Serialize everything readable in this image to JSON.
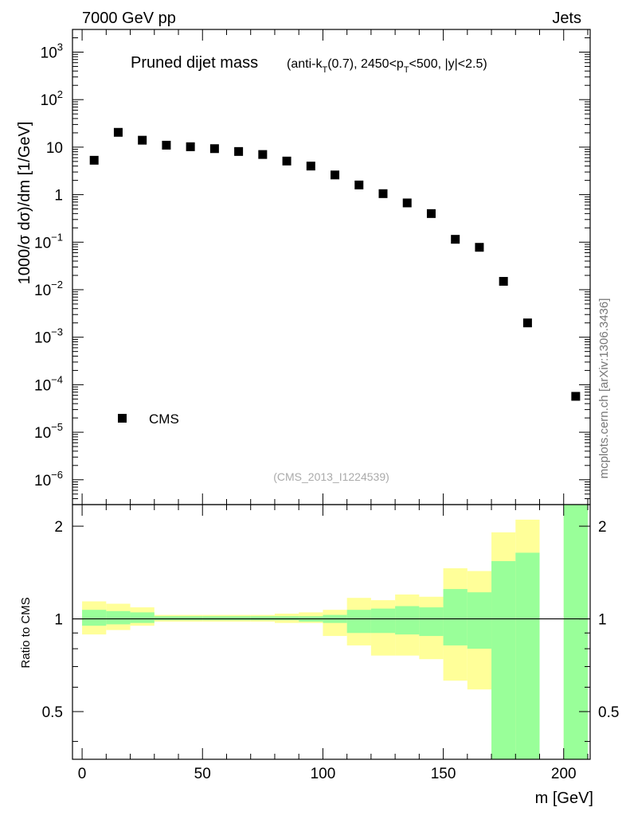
{
  "header": {
    "left": "7000 GeV pp",
    "right": "Jets"
  },
  "side_label": "mcplots.cern.ch [arXiv:1306.3436]",
  "chart_data": [
    {
      "type": "scatter",
      "title": "Pruned dijet mass",
      "subtitle": "(anti-kT(0.7), 2450<pT<500, |y|<2.5)",
      "subtitle_parts": {
        "a": "(anti-k",
        "b": "T",
        "c": "(0.7), 2450<p",
        "d": "T",
        "e": "<500, |y|<2.5)"
      },
      "ylabel": "1000/σ dσ)/dm [1/GeV]",
      "yscale": "log",
      "ylim": [
        3e-07,
        3000
      ],
      "xlim": [
        -4,
        211
      ],
      "ytick_labels": [
        {
          "v": 1000,
          "base": "10",
          "exp": "3"
        },
        {
          "v": 100,
          "base": "10",
          "exp": "2"
        },
        {
          "v": 10,
          "base": "10",
          "exp": ""
        },
        {
          "v": 1,
          "base": "1",
          "exp": ""
        },
        {
          "v": 0.1,
          "base": "10",
          "exp": "−1"
        },
        {
          "v": 0.01,
          "base": "10",
          "exp": "−2"
        },
        {
          "v": 0.001,
          "base": "10",
          "exp": "−3"
        },
        {
          "v": 0.0001,
          "base": "10",
          "exp": "−4"
        },
        {
          "v": 1e-05,
          "base": "10",
          "exp": "−5"
        },
        {
          "v": 1e-06,
          "base": "10",
          "exp": "−6"
        }
      ],
      "legend": {
        "label": "CMS",
        "position": "bottom-left"
      },
      "watermark": "(CMS_2013_I1224539)",
      "series": [
        {
          "name": "CMS",
          "x": [
            5,
            15,
            25,
            35,
            45,
            55,
            65,
            75,
            85,
            95,
            105,
            115,
            125,
            135,
            145,
            155,
            165,
            175,
            185,
            205
          ],
          "y": [
            5.3,
            20.5,
            14,
            11,
            10.2,
            9.3,
            8.1,
            7,
            5.1,
            4,
            2.6,
            1.6,
            1.05,
            0.67,
            0.4,
            0.115,
            0.078,
            0.015,
            0.002,
            5.7e-05
          ]
        }
      ]
    },
    {
      "type": "area",
      "ylabel": "Ratio to CMS",
      "xlabel": "m [GeV]",
      "yscale": "log",
      "ylim": [
        0.35,
        2.35
      ],
      "xlim": [
        -4,
        211
      ],
      "xticks": [
        0,
        50,
        100,
        150,
        200
      ],
      "xtick_labels": [
        "0",
        "50",
        "100",
        "150",
        "200"
      ],
      "yticks": [
        0.5,
        1,
        2
      ],
      "ytick_labels": [
        "0.5",
        "1",
        "2"
      ],
      "bins": [
        [
          0,
          10
        ],
        [
          10,
          20
        ],
        [
          20,
          30
        ],
        [
          30,
          40
        ],
        [
          40,
          50
        ],
        [
          50,
          60
        ],
        [
          60,
          70
        ],
        [
          70,
          80
        ],
        [
          80,
          90
        ],
        [
          90,
          100
        ],
        [
          100,
          110
        ],
        [
          110,
          120
        ],
        [
          120,
          130
        ],
        [
          130,
          140
        ],
        [
          140,
          150
        ],
        [
          150,
          160
        ],
        [
          160,
          170
        ],
        [
          170,
          180
        ],
        [
          180,
          190
        ],
        [
          200,
          210
        ]
      ],
      "band_yellow": [
        [
          0.89,
          1.14
        ],
        [
          0.92,
          1.12
        ],
        [
          0.95,
          1.09
        ],
        [
          0.98,
          1.03
        ],
        [
          0.98,
          1.03
        ],
        [
          0.98,
          1.03
        ],
        [
          0.98,
          1.03
        ],
        [
          0.98,
          1.03
        ],
        [
          0.97,
          1.04
        ],
        [
          0.97,
          1.05
        ],
        [
          0.88,
          1.07
        ],
        [
          0.82,
          1.17
        ],
        [
          0.76,
          1.15
        ],
        [
          0.76,
          1.2
        ],
        [
          0.74,
          1.18
        ],
        [
          0.63,
          1.46
        ],
        [
          0.59,
          1.43
        ],
        [
          0.35,
          1.91
        ],
        [
          0.42,
          2.1
        ],
        [
          0.35,
          2.35
        ]
      ],
      "band_green": [
        [
          0.95,
          1.07
        ],
        [
          0.96,
          1.06
        ],
        [
          0.97,
          1.05
        ],
        [
          0.99,
          1.02
        ],
        [
          0.99,
          1.02
        ],
        [
          0.99,
          1.02
        ],
        [
          0.99,
          1.02
        ],
        [
          0.99,
          1.02
        ],
        [
          0.99,
          1.02
        ],
        [
          0.98,
          1.02
        ],
        [
          0.97,
          1.03
        ],
        [
          0.9,
          1.07
        ],
        [
          0.9,
          1.08
        ],
        [
          0.89,
          1.1
        ],
        [
          0.88,
          1.09
        ],
        [
          0.82,
          1.25
        ],
        [
          0.8,
          1.22
        ],
        [
          0.35,
          1.54
        ],
        [
          0.35,
          1.64
        ],
        [
          0.35,
          2.35
        ]
      ]
    }
  ],
  "colors": {
    "yellow": "#ffff99",
    "green": "#99ff99",
    "marker": "#000000"
  }
}
